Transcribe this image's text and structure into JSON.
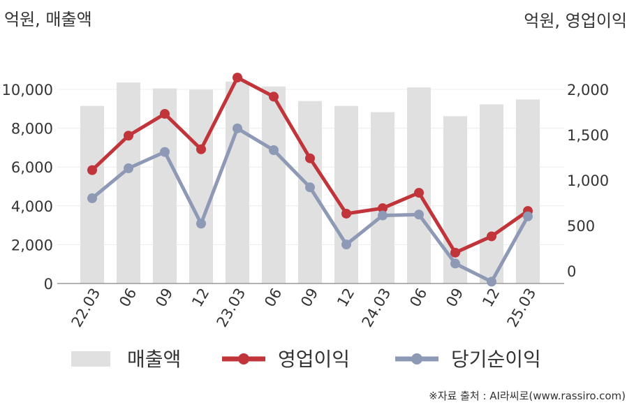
{
  "chart_data": {
    "type": "bar+line",
    "left_unit_label": "억원, 매출액",
    "right_unit_label": "억원, 영업이익",
    "categories": [
      "22.03",
      "06",
      "09",
      "12",
      "23.03",
      "06",
      "09",
      "12",
      "24.03",
      "06",
      "09",
      "12",
      "25.03"
    ],
    "left_axis": {
      "min": 0,
      "max": 10000,
      "ticks": [
        0,
        2000,
        4000,
        6000,
        8000,
        10000
      ],
      "tick_labels": [
        "0",
        "2,000",
        "4,000",
        "6,000",
        "8,000",
        "10,000"
      ]
    },
    "right_axis": {
      "min": -140,
      "max": 2000,
      "ticks": [
        0,
        500,
        1000,
        1500,
        2000
      ],
      "tick_labels": [
        "0",
        "500",
        "1,000",
        "1,500",
        "2,000"
      ]
    },
    "series": [
      {
        "name": "매출액",
        "type": "bar",
        "axis": "left",
        "color": "#e0e0e0",
        "values": [
          9150,
          10350,
          10050,
          9980,
          10400,
          10150,
          9400,
          9150,
          8830,
          10100,
          8620,
          9230,
          9480
        ]
      },
      {
        "name": "영업이익",
        "type": "line",
        "axis": "right",
        "color": "#c0343a",
        "values": [
          1110,
          1490,
          1730,
          1340,
          2130,
          1920,
          1240,
          630,
          690,
          860,
          200,
          380,
          660
        ]
      },
      {
        "name": "당기순이익",
        "type": "line",
        "axis": "right",
        "color": "#8e9ab5",
        "values": [
          800,
          1130,
          1310,
          520,
          1570,
          1330,
          920,
          290,
          610,
          620,
          80,
          -120,
          600
        ]
      }
    ],
    "grid": true,
    "legend_position": "bottom"
  },
  "footer": {
    "source": "※자료 출처 : AI라씨로(www.rassiro.com)"
  }
}
